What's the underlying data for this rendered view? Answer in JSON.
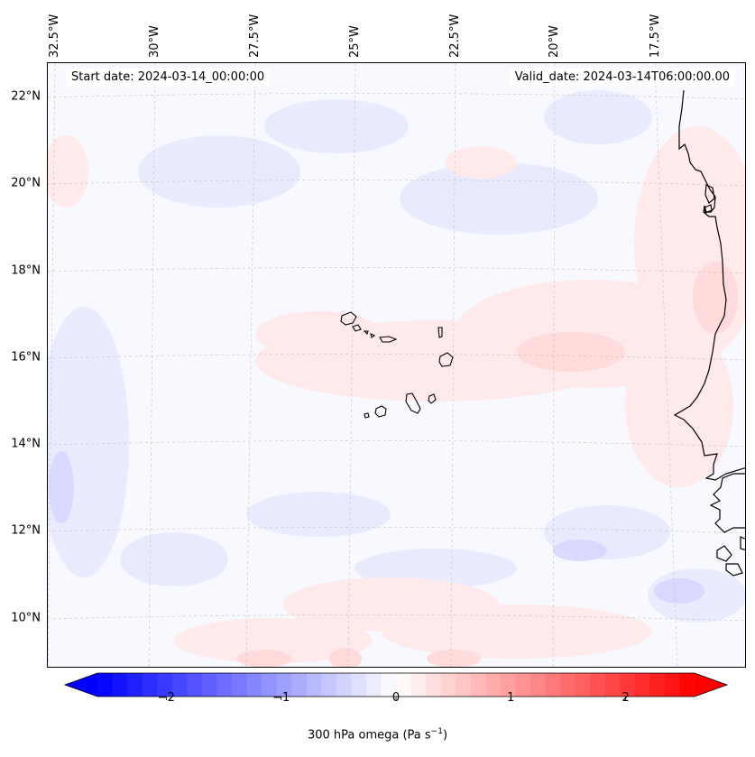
{
  "header": {
    "start_date": "Start date: 2024-03-14_00:00:00",
    "valid_date": "Valid_date: 2024-03-14T06:00:00.00"
  },
  "axes": {
    "lon_ticks": [
      "32.5°W",
      "30°W",
      "27.5°W",
      "25°W",
      "22.5°W",
      "20°W",
      "17.5°W"
    ],
    "lat_ticks": [
      "22°N",
      "20°N",
      "18°N",
      "16°N",
      "14°N",
      "12°N",
      "10°N"
    ],
    "gridlines": true
  },
  "colorbar": {
    "label": "300 hPa omega (Pa s",
    "label_sup": "−1",
    "label_end": ")",
    "ticks": [
      "−2",
      "−1",
      "0",
      "1",
      "2"
    ],
    "tick_values": [
      -2,
      -1,
      0,
      1,
      2
    ],
    "range": [
      -2.6,
      2.6
    ],
    "extend": "both",
    "cmap": "bwr",
    "min_color": "#0000ff",
    "mid_color": "#ffffff",
    "max_color": "#ff0000"
  },
  "colors": {
    "coastline": "#000000",
    "gridline": "#bbbbbb",
    "weak_positive": "#ffe6e6",
    "weak_negative": "#ececff"
  },
  "map": {
    "variable": "300 hPa omega",
    "features": [
      "Cape Verde islands",
      "West African coastline"
    ]
  }
}
